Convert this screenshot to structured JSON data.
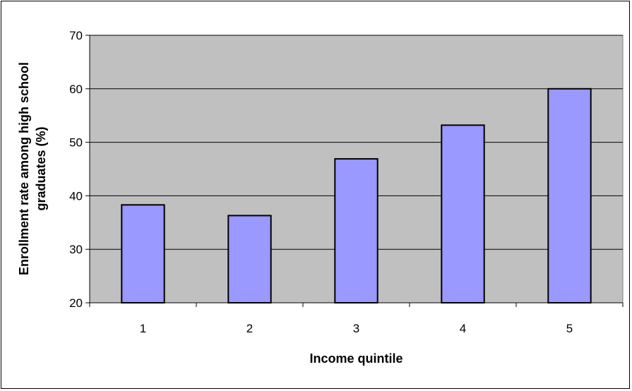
{
  "chart_data": {
    "type": "bar",
    "title": "",
    "xlabel": "Income quintile",
    "ylabel_lines": [
      "Enrollment rate among high school",
      "graduates  (%)"
    ],
    "categories": [
      "1",
      "2",
      "3",
      "4",
      "5"
    ],
    "values": [
      38.3,
      36.3,
      46.9,
      53.2,
      60.0
    ],
    "ylim": [
      20,
      70
    ],
    "yticks": [
      20,
      30,
      40,
      50,
      60,
      70
    ],
    "grid": true,
    "legend": "none",
    "colors": {
      "bar": "#9999ff",
      "plot_background": "#c0c0c0",
      "gridline": "#000000"
    }
  }
}
